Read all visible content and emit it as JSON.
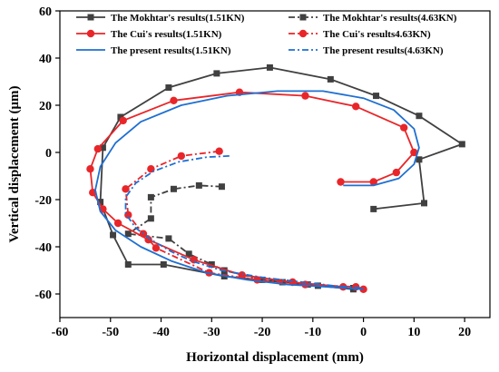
{
  "chart_data": {
    "type": "line",
    "xlabel": "Horizontal displacement (mm)",
    "ylabel": "Vertical displacement (μm)",
    "xlim": [
      -60,
      25
    ],
    "ylim": [
      -70,
      60
    ],
    "xticks": [
      -60,
      -50,
      -40,
      -30,
      -20,
      -10,
      0,
      10,
      20
    ],
    "yticks": [
      -60,
      -40,
      -20,
      0,
      20,
      40,
      60
    ],
    "grid": false,
    "legend_position": "top-center",
    "series": [
      {
        "name": "The Mokhtar's results(1.51KN)",
        "color": "#404040",
        "style": "solid",
        "marker": "square",
        "x": [
          2,
          12,
          11,
          19.5,
          11,
          2.5,
          -6.5,
          -18.5,
          -29,
          -38.5,
          -48,
          -51.5,
          -52,
          -49.5,
          -46.5,
          -39.5,
          -27.5,
          -16,
          -9,
          -2
        ],
        "y": [
          -24,
          -21.5,
          -3,
          3.5,
          15.5,
          24,
          31,
          36,
          33.5,
          27.5,
          15,
          2,
          -21,
          -35,
          -47.5,
          -47.5,
          -52.5,
          -55,
          -56.5,
          -58
        ]
      },
      {
        "name": "The Mokhtar's results(4.63KN)",
        "color": "#404040",
        "style": "dashdot",
        "marker": "square",
        "x": [
          -28,
          -32.5,
          -37.5,
          -42,
          -42,
          -46.5,
          -38.5,
          -34.5,
          -30,
          -27.5,
          -20,
          -11,
          -2
        ],
        "y": [
          -14.5,
          -14,
          -15.5,
          -19,
          -28,
          -34.5,
          -36.5,
          -43,
          -47.5,
          -50,
          -54,
          -56,
          -57.5
        ]
      },
      {
        "name": "The Cui's results(1.51KN)",
        "color": "#e8262a",
        "style": "solid",
        "marker": "circle",
        "x": [
          -4.5,
          2,
          6.5,
          10,
          8,
          -1.5,
          -11.5,
          -24.5,
          -37.5,
          -47.5,
          -52.5,
          -54,
          -53.5,
          -51.5,
          -48.5,
          -42.5,
          -33.5,
          -24,
          -14,
          -4
        ],
        "y": [
          -12.5,
          -12.5,
          -8.5,
          0,
          10.5,
          19.5,
          24,
          25.5,
          22,
          13.5,
          1.5,
          -7,
          -17,
          -24,
          -30,
          -37,
          -45.5,
          -52,
          -55,
          -57
        ]
      },
      {
        "name": "The Cui's results4.63KN)",
        "color": "#e8262a",
        "style": "dashdot",
        "marker": "circle",
        "x": [
          -28.5,
          -36,
          -42,
          -47,
          -46.5,
          -43.5,
          -41,
          -30.5,
          -21,
          -11.5,
          -1.5,
          0
        ],
        "y": [
          0.5,
          -1.5,
          -7,
          -15.5,
          -26.5,
          -34.5,
          -40.5,
          -51,
          -54,
          -56,
          -57,
          -58
        ]
      },
      {
        "name": "The present results(1.51KN)",
        "color": "#1f6fd1",
        "style": "solid",
        "marker": "none",
        "x": [
          -4,
          2,
          7,
          10,
          11,
          10,
          6,
          0,
          -8,
          -17,
          -27,
          -36,
          -44,
          -49,
          -52,
          -53,
          -52,
          -49,
          -44,
          -38,
          -31,
          -23,
          -15,
          -7,
          0
        ],
        "y": [
          -14,
          -14,
          -11,
          -5,
          2,
          10,
          18,
          23,
          26,
          26,
          24,
          20,
          13,
          4,
          -6,
          -16,
          -25,
          -33,
          -40,
          -46,
          -51,
          -54,
          -56,
          -57,
          -58
        ]
      },
      {
        "name": "The present results(4.63KN)",
        "color": "#1f6fd1",
        "style": "dashdot",
        "marker": "none",
        "x": [
          -26.5,
          -31,
          -36.5,
          -41.5,
          -45,
          -47,
          -47,
          -45,
          -42,
          -38,
          -34,
          -28,
          -20,
          -12,
          -6,
          0
        ],
        "y": [
          -1.5,
          -2,
          -4,
          -8,
          -13,
          -19,
          -26,
          -32,
          -37,
          -42,
          -46,
          -50,
          -53,
          -55,
          -56.5,
          -57.5
        ]
      }
    ]
  }
}
